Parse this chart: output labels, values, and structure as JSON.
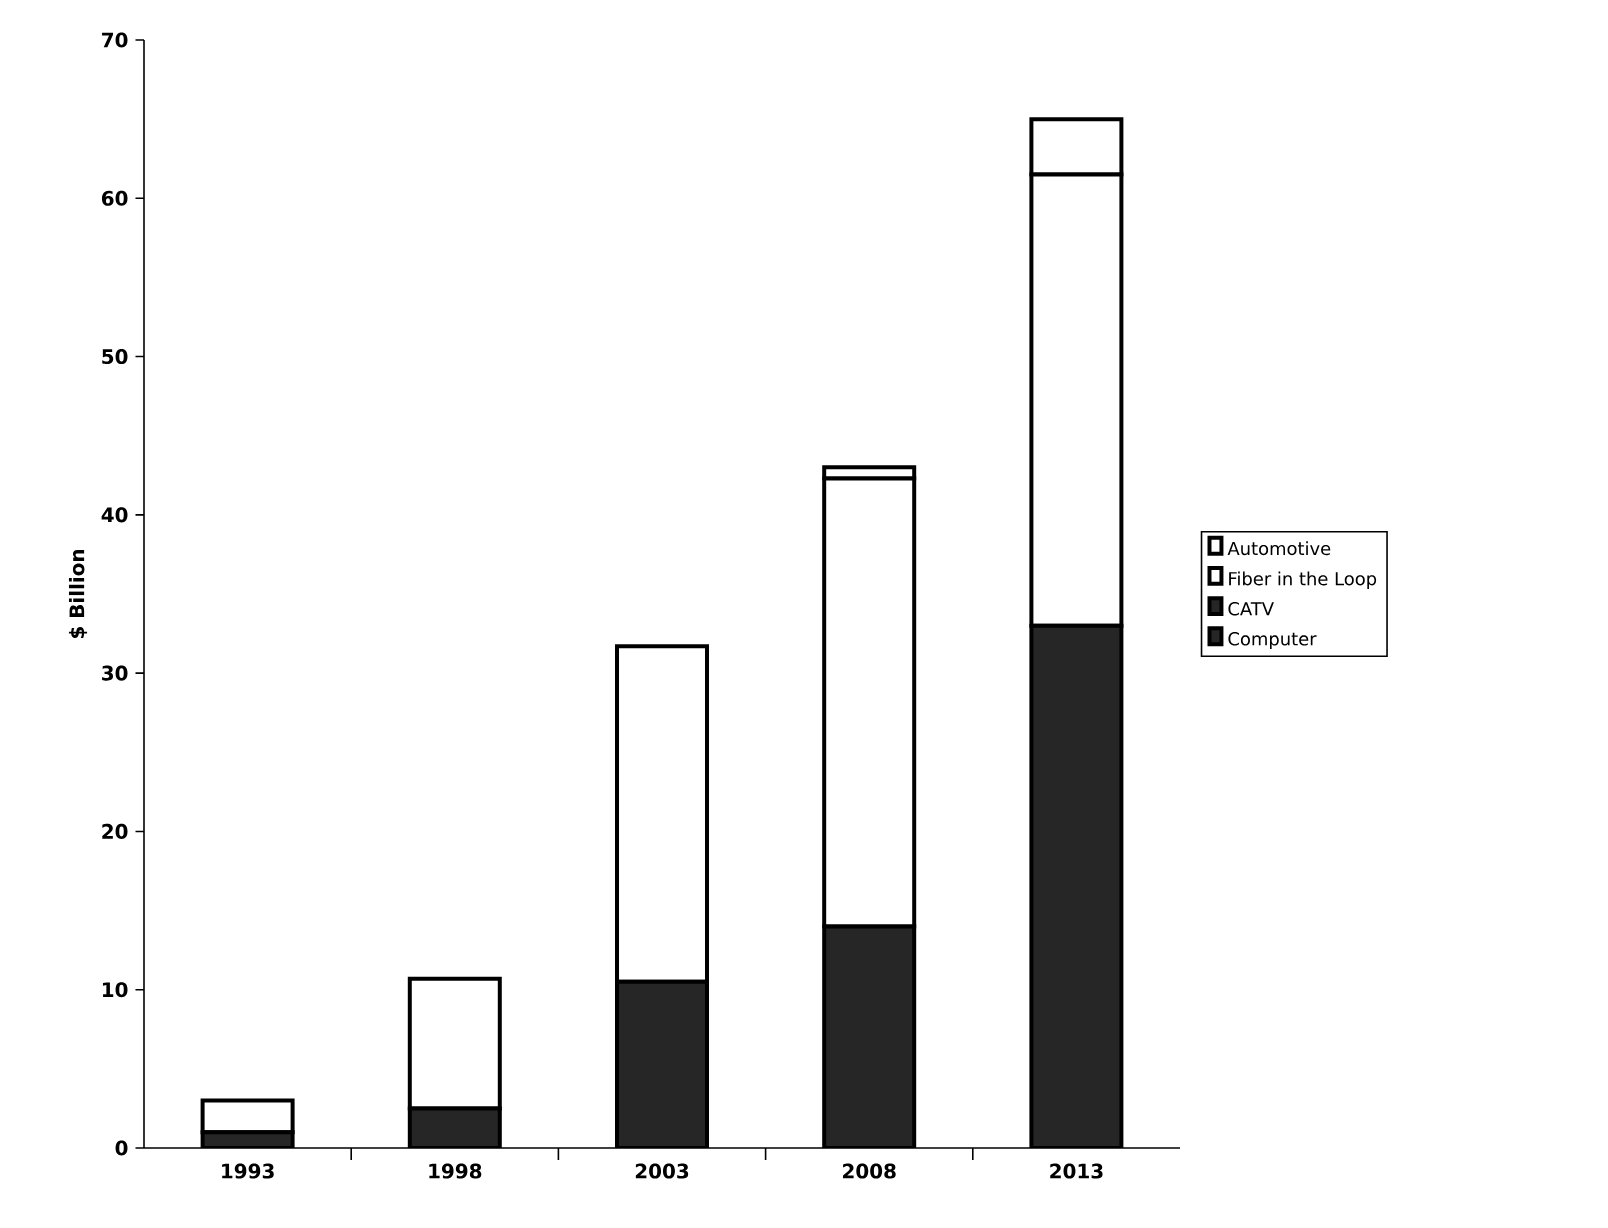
{
  "chart_data": {
    "type": "bar",
    "stacked": true,
    "ylabel": "$ Billion",
    "categories": [
      "1993",
      "1998",
      "2003",
      "2008",
      "2013"
    ],
    "series": [
      {
        "name": "Computer",
        "color": "#262626",
        "values": [
          1,
          2.5,
          10.5,
          14,
          33
        ]
      },
      {
        "name": "CATV",
        "color": "#262626",
        "values": [
          0,
          0,
          0,
          0,
          0
        ]
      },
      {
        "name": "Fiber in the Loop",
        "color": "#ffffff",
        "values": [
          2,
          8.2,
          21.2,
          28.3,
          28.5
        ]
      },
      {
        "name": "Automotive",
        "color": "#ffffff",
        "values": [
          0,
          0,
          0,
          0.7,
          3.5
        ]
      }
    ],
    "ylim": [
      0,
      70
    ],
    "yticks": [
      0,
      10,
      20,
      30,
      40,
      50,
      60,
      70
    ],
    "legend": "right"
  }
}
